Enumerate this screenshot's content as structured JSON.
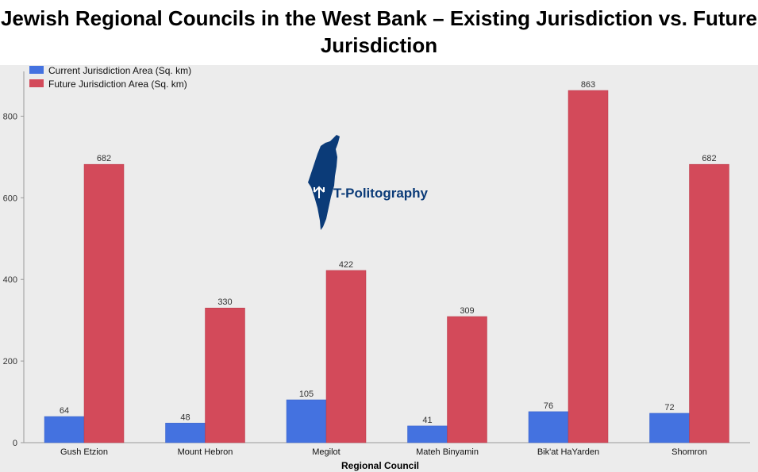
{
  "title": "Jewish Regional Councils in the West Bank – Existing Jurisdiction vs. Future Jurisdiction",
  "watermark": {
    "text": "T-Politography",
    "icon": "israel-map-logo-icon"
  },
  "colors": {
    "current": "#4472e0",
    "future": "#d34a5a",
    "background": "#ececec"
  },
  "chart_data": {
    "type": "bar",
    "title": "Jewish Regional Councils in the West Bank – Existing Jurisdiction vs. Future Jurisdiction",
    "xlabel": "Regional Council",
    "ylabel": "",
    "categories": [
      "Gush Etzion",
      "Mount Hebron",
      "Megilot",
      "Mateh Binyamin",
      "Bik'at HaYarden",
      "Shomron"
    ],
    "series": [
      {
        "name": "Current Jurisdiction Area (Sq. km)",
        "values": [
          64,
          48,
          105,
          41,
          76,
          72
        ]
      },
      {
        "name": "Future Jurisdiction Area (Sq. km)",
        "values": [
          682,
          330,
          422,
          309,
          863,
          682
        ]
      }
    ],
    "ylim": [
      0,
      900
    ],
    "yticks": [
      0,
      200,
      400,
      600,
      800
    ],
    "legend": "top-left",
    "grid": false
  }
}
